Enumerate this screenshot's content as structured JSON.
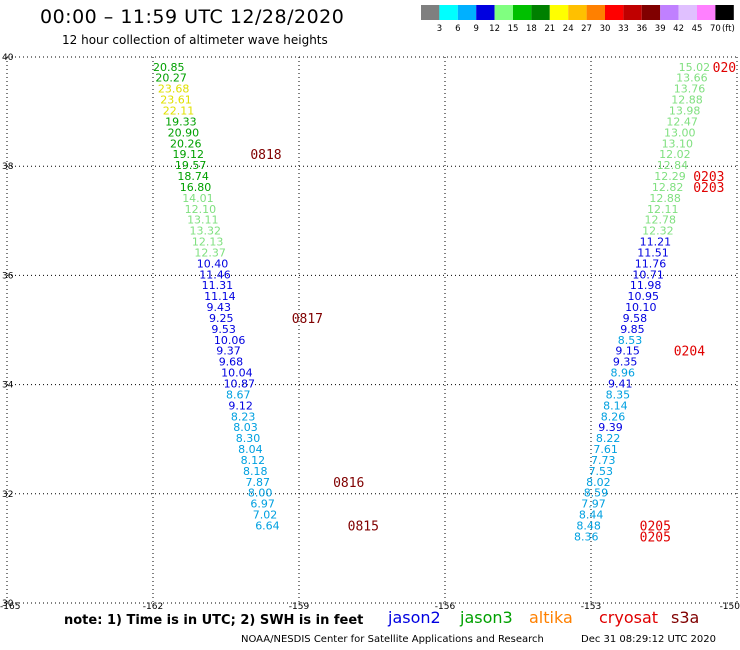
{
  "header": {
    "title": "00:00 – 11:59 UTC 12/28/2020",
    "subtitle": "12 hour collection of altimeter wave heights"
  },
  "colorbar": {
    "unit_label": "(ft)",
    "bins": [
      {
        "label": "3",
        "color": "#7f7f7f"
      },
      {
        "label": "6",
        "color": "#00ffff"
      },
      {
        "label": "9",
        "color": "#00b0ff"
      },
      {
        "label": "12",
        "color": "#0000e0"
      },
      {
        "label": "15",
        "color": "#80ff80"
      },
      {
        "label": "18",
        "color": "#00c000"
      },
      {
        "label": "21",
        "color": "#008000"
      },
      {
        "label": "24",
        "color": "#ffff00"
      },
      {
        "label": "27",
        "color": "#ffc000"
      },
      {
        "label": "30",
        "color": "#ff8000"
      },
      {
        "label": "33",
        "color": "#ff0000"
      },
      {
        "label": "36",
        "color": "#c00000"
      },
      {
        "label": "39",
        "color": "#800000"
      },
      {
        "label": "42",
        "color": "#c080ff"
      },
      {
        "label": "45",
        "color": "#e0c0ff"
      },
      {
        "label": "70",
        "color": "#ff80ff"
      },
      {
        "label": "",
        "color": "#000000"
      }
    ]
  },
  "note": "note:  1) Time is in UTC; 2) SWH is in feet",
  "missions": [
    {
      "name": "jason2",
      "color": "#0000e0"
    },
    {
      "name": "jason3",
      "color": "#00a000"
    },
    {
      "name": "altika",
      "color": "#ff8000"
    },
    {
      "name": "cryosat",
      "color": "#e00000"
    },
    {
      "name": "s3a",
      "color": "#800000"
    }
  ],
  "footer": {
    "credit": "NOAA/NESDIS Center for Satellite Applications and Research",
    "generated": "Dec 31 08:29:12 UTC 2020"
  },
  "chart_data": {
    "type": "scatter",
    "title": "00:00 – 11:59 UTC 12/28/2020",
    "xlim": [
      -165,
      -150
    ],
    "ylim": [
      30,
      40
    ],
    "x_ticks": [
      "-165",
      "-162",
      "-159",
      "-156",
      "-153",
      "-150"
    ],
    "y_ticks": [
      "30",
      "32",
      "34",
      "36",
      "38",
      "40"
    ],
    "grid": true,
    "tracks": [
      {
        "name": "track-west",
        "points": [
          {
            "x": -162.0,
            "y": 39.82,
            "v": "20.85",
            "color": "#00a000"
          },
          {
            "x": -161.95,
            "y": 39.62,
            "v": "20.27",
            "color": "#00a000"
          },
          {
            "x": -161.9,
            "y": 39.42,
            "v": "23.68",
            "color": "#e0e000"
          },
          {
            "x": -161.85,
            "y": 39.22,
            "v": "23.61",
            "color": "#e0e000"
          },
          {
            "x": -161.8,
            "y": 39.02,
            "v": "22.11",
            "color": "#e0e000"
          },
          {
            "x": -161.75,
            "y": 38.82,
            "v": "19.33",
            "color": "#00a000"
          },
          {
            "x": -161.7,
            "y": 38.62,
            "v": "20.90",
            "color": "#00a000"
          },
          {
            "x": -161.65,
            "y": 38.42,
            "v": "20.26",
            "color": "#00a000"
          },
          {
            "x": -161.6,
            "y": 38.22,
            "v": "19.12",
            "color": "#00a000"
          },
          {
            "x": -161.55,
            "y": 38.02,
            "v": "19.57",
            "color": "#00a000"
          },
          {
            "x": -161.5,
            "y": 37.82,
            "v": "18.74",
            "color": "#00a000"
          },
          {
            "x": -161.45,
            "y": 37.62,
            "v": "16.80",
            "color": "#00a000"
          },
          {
            "x": -161.4,
            "y": 37.42,
            "v": "14.01",
            "color": "#80e080"
          },
          {
            "x": -161.35,
            "y": 37.22,
            "v": "12.10",
            "color": "#80e080"
          },
          {
            "x": -161.3,
            "y": 37.02,
            "v": "13.11",
            "color": "#80e080"
          },
          {
            "x": -161.25,
            "y": 36.82,
            "v": "13.32",
            "color": "#80e080"
          },
          {
            "x": -161.2,
            "y": 36.62,
            "v": "12.13",
            "color": "#80e080"
          },
          {
            "x": -161.15,
            "y": 36.42,
            "v": "12.37",
            "color": "#80e080"
          },
          {
            "x": -161.1,
            "y": 36.22,
            "v": "10.40",
            "color": "#0000e0"
          },
          {
            "x": -161.05,
            "y": 36.02,
            "v": "11.46",
            "color": "#0000e0"
          },
          {
            "x": -161.0,
            "y": 35.82,
            "v": "11.31",
            "color": "#0000e0"
          },
          {
            "x": -160.95,
            "y": 35.62,
            "v": "11.14",
            "color": "#0000e0"
          },
          {
            "x": -160.9,
            "y": 35.42,
            "v": "9.43",
            "color": "#0000e0"
          },
          {
            "x": -160.85,
            "y": 35.22,
            "v": "9.25",
            "color": "#0000e0"
          },
          {
            "x": -160.8,
            "y": 35.02,
            "v": "9.53",
            "color": "#0000e0"
          },
          {
            "x": -160.75,
            "y": 34.82,
            "v": "10.06",
            "color": "#0000e0"
          },
          {
            "x": -160.7,
            "y": 34.62,
            "v": "9.37",
            "color": "#0000e0"
          },
          {
            "x": -160.65,
            "y": 34.42,
            "v": "9.68",
            "color": "#0000e0"
          },
          {
            "x": -160.6,
            "y": 34.22,
            "v": "10.04",
            "color": "#0000e0"
          },
          {
            "x": -160.55,
            "y": 34.02,
            "v": "10.87",
            "color": "#0000e0"
          },
          {
            "x": -160.5,
            "y": 33.82,
            "v": "8.67",
            "color": "#00a0e0"
          },
          {
            "x": -160.45,
            "y": 33.62,
            "v": "9.12",
            "color": "#0000e0"
          },
          {
            "x": -160.4,
            "y": 33.42,
            "v": "8.23",
            "color": "#00a0e0"
          },
          {
            "x": -160.35,
            "y": 33.22,
            "v": "8.03",
            "color": "#00a0e0"
          },
          {
            "x": -160.3,
            "y": 33.02,
            "v": "8.30",
            "color": "#00a0e0"
          },
          {
            "x": -160.25,
            "y": 32.82,
            "v": "8.04",
            "color": "#00a0e0"
          },
          {
            "x": -160.2,
            "y": 32.62,
            "v": "8.12",
            "color": "#00a0e0"
          },
          {
            "x": -160.15,
            "y": 32.42,
            "v": "8.18",
            "color": "#00a0e0"
          },
          {
            "x": -160.1,
            "y": 32.22,
            "v": "7.87",
            "color": "#00a0e0"
          },
          {
            "x": -160.05,
            "y": 32.02,
            "v": "8.00",
            "color": "#00a0e0"
          },
          {
            "x": -160.0,
            "y": 31.82,
            "v": "6.97",
            "color": "#00a0e0"
          },
          {
            "x": -159.95,
            "y": 31.62,
            "v": "7.02",
            "color": "#00a0e0"
          },
          {
            "x": -159.9,
            "y": 31.42,
            "v": "6.64",
            "color": "#00a0e0"
          }
        ],
        "time_tags": [
          {
            "x": -160.0,
            "y": 38.22,
            "label": "0818",
            "color": "#800000"
          },
          {
            "x": -159.15,
            "y": 35.22,
            "label": "0817",
            "color": "#800000"
          },
          {
            "x": -158.3,
            "y": 32.22,
            "label": "0816",
            "color": "#800000"
          },
          {
            "x": -158.0,
            "y": 31.42,
            "label": "0815",
            "color": "#800000"
          }
        ]
      },
      {
        "name": "track-east",
        "points": [
          {
            "x": -151.2,
            "y": 39.82,
            "v": "15.02",
            "color": "#80e080"
          },
          {
            "x": -151.25,
            "y": 39.62,
            "v": "13.66",
            "color": "#80e080"
          },
          {
            "x": -151.3,
            "y": 39.42,
            "v": "13.76",
            "color": "#80e080"
          },
          {
            "x": -151.35,
            "y": 39.22,
            "v": "12.88",
            "color": "#80e080"
          },
          {
            "x": -151.4,
            "y": 39.02,
            "v": "13.98",
            "color": "#80e080"
          },
          {
            "x": -151.45,
            "y": 38.82,
            "v": "12.47",
            "color": "#80e080"
          },
          {
            "x": -151.5,
            "y": 38.62,
            "v": "13.00",
            "color": "#80e080"
          },
          {
            "x": -151.55,
            "y": 38.42,
            "v": "13.10",
            "color": "#80e080"
          },
          {
            "x": -151.6,
            "y": 38.22,
            "v": "12.02",
            "color": "#80e080"
          },
          {
            "x": -151.65,
            "y": 38.02,
            "v": "12.84",
            "color": "#80e080"
          },
          {
            "x": -151.7,
            "y": 37.82,
            "v": "12.29",
            "color": "#80e080"
          },
          {
            "x": -151.75,
            "y": 37.62,
            "v": "12.82",
            "color": "#80e080"
          },
          {
            "x": -151.8,
            "y": 37.42,
            "v": "12.88",
            "color": "#80e080"
          },
          {
            "x": -151.85,
            "y": 37.22,
            "v": "12.11",
            "color": "#80e080"
          },
          {
            "x": -151.9,
            "y": 37.02,
            "v": "12.78",
            "color": "#80e080"
          },
          {
            "x": -151.95,
            "y": 36.82,
            "v": "12.32",
            "color": "#80e080"
          },
          {
            "x": -152.0,
            "y": 36.62,
            "v": "11.21",
            "color": "#0000e0"
          },
          {
            "x": -152.05,
            "y": 36.42,
            "v": "11.51",
            "color": "#0000e0"
          },
          {
            "x": -152.1,
            "y": 36.22,
            "v": "11.76",
            "color": "#0000e0"
          },
          {
            "x": -152.15,
            "y": 36.02,
            "v": "10.71",
            "color": "#0000e0"
          },
          {
            "x": -152.2,
            "y": 35.82,
            "v": "11.98",
            "color": "#0000e0"
          },
          {
            "x": -152.25,
            "y": 35.62,
            "v": "10.95",
            "color": "#0000e0"
          },
          {
            "x": -152.3,
            "y": 35.42,
            "v": "10.10",
            "color": "#0000e0"
          },
          {
            "x": -152.35,
            "y": 35.22,
            "v": "9.58",
            "color": "#0000e0"
          },
          {
            "x": -152.4,
            "y": 35.02,
            "v": "9.85",
            "color": "#0000e0"
          },
          {
            "x": -152.45,
            "y": 34.82,
            "v": "8.53",
            "color": "#00a0e0"
          },
          {
            "x": -152.5,
            "y": 34.62,
            "v": "9.15",
            "color": "#0000e0"
          },
          {
            "x": -152.55,
            "y": 34.42,
            "v": "9.35",
            "color": "#0000e0"
          },
          {
            "x": -152.6,
            "y": 34.22,
            "v": "8.96",
            "color": "#00a0e0"
          },
          {
            "x": -152.65,
            "y": 34.02,
            "v": "9.41",
            "color": "#0000e0"
          },
          {
            "x": -152.7,
            "y": 33.82,
            "v": "8.35",
            "color": "#00a0e0"
          },
          {
            "x": -152.75,
            "y": 33.62,
            "v": "8.14",
            "color": "#00a0e0"
          },
          {
            "x": -152.8,
            "y": 33.42,
            "v": "8.26",
            "color": "#00a0e0"
          },
          {
            "x": -152.85,
            "y": 33.22,
            "v": "9.39",
            "color": "#0000e0"
          },
          {
            "x": -152.9,
            "y": 33.02,
            "v": "8.22",
            "color": "#00a0e0"
          },
          {
            "x": -152.95,
            "y": 32.82,
            "v": "7.61",
            "color": "#00a0e0"
          },
          {
            "x": -153.0,
            "y": 32.62,
            "v": "7.73",
            "color": "#00a0e0"
          },
          {
            "x": -153.05,
            "y": 32.42,
            "v": "7.53",
            "color": "#00a0e0"
          },
          {
            "x": -153.1,
            "y": 32.22,
            "v": "8.02",
            "color": "#00a0e0"
          },
          {
            "x": -153.15,
            "y": 32.02,
            "v": "8.59",
            "color": "#00a0e0"
          },
          {
            "x": -153.2,
            "y": 31.82,
            "v": "7.97",
            "color": "#00a0e0"
          },
          {
            "x": -153.25,
            "y": 31.62,
            "v": "8.44",
            "color": "#00a0e0"
          },
          {
            "x": -153.3,
            "y": 31.42,
            "v": "8.48",
            "color": "#00a0e0"
          },
          {
            "x": -153.35,
            "y": 31.22,
            "v": "8.36",
            "color": "#00a0e0"
          }
        ],
        "time_tags": [
          {
            "x": -150.5,
            "y": 39.82,
            "label": "020",
            "color": "#e00000"
          },
          {
            "x": -150.9,
            "y": 37.82,
            "label": "0203",
            "color": "#e00000"
          },
          {
            "x": -150.9,
            "y": 37.62,
            "label": "0203",
            "color": "#e00000"
          },
          {
            "x": -151.3,
            "y": 34.62,
            "label": "0204",
            "color": "#e00000"
          },
          {
            "x": -152.0,
            "y": 31.42,
            "label": "0205",
            "color": "#e00000"
          },
          {
            "x": -152.0,
            "y": 31.22,
            "label": "0205",
            "color": "#e00000"
          }
        ]
      }
    ]
  }
}
